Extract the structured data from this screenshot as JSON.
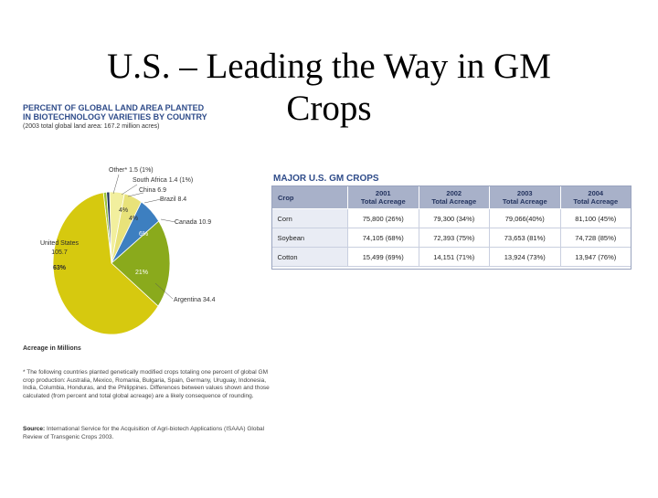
{
  "slide": {
    "title_line1": "U.S. – Leading the Way in GM",
    "title_line2": "Crops"
  },
  "pie": {
    "heading_line1": "PERCENT OF GLOBAL LAND AREA PLANTED",
    "heading_line2": "IN BIOTECHNOLOGY VARIETIES BY COUNTRY",
    "subheading": "(2003 total global land area: 167.2 million acres)",
    "acreage_note": "Acreage in Millions",
    "footnote": "* The following countries planted genetically modified crops totaling one percent of global GM crop production: Australia, Mexico, Romania, Bulgaria, Spain, Germany, Uruguay, Indonesia, India, Columbia, Honduras, and the Philippines. Differences between values shown and those calculated (from percent and total global acreage) are a likely consequence of rounding.",
    "source_label": "Source:",
    "source_text": "International Service for the Acquisition of Agri-biotech Applications (ISAAA) Global Review of Transgenic Crops 2003."
  },
  "chart_data": [
    {
      "type": "pie",
      "title": "PERCENT OF GLOBAL LAND AREA PLANTED IN BIOTECHNOLOGY VARIETIES BY COUNTRY",
      "unit": "Acreage in Millions",
      "slices": [
        {
          "name": "United States",
          "value": 105.7,
          "percent": 63,
          "label_value": "105.7",
          "label_percent": "63%",
          "color": "#d6c90f"
        },
        {
          "name": "Argentina",
          "value": 34.4,
          "percent": 21,
          "label_value": "34.4",
          "label_percent": "21%",
          "color": "#8aaa1c"
        },
        {
          "name": "Canada",
          "value": 10.9,
          "percent": 6,
          "label_value": "10.9",
          "label_percent": "6%",
          "color": "#3d7fc0"
        },
        {
          "name": "Brazil",
          "value": 8.4,
          "percent": 4,
          "label_value": "8.4",
          "label_percent": "4%",
          "color": "#e8e27a"
        },
        {
          "name": "China",
          "value": 6.9,
          "percent": 4,
          "label_value": "6.9",
          "label_percent": "4%",
          "color": "#f2ef9e"
        },
        {
          "name": "South Africa",
          "value": 1.4,
          "percent": 1,
          "label_value": "1.4 (1%)",
          "label_percent": "",
          "color": "#1d2e5a"
        },
        {
          "name": "Other*",
          "value": 1.5,
          "percent": 1,
          "label_value": "1.5 (1%)",
          "label_percent": "",
          "color": "#9cc43a"
        }
      ]
    },
    {
      "type": "table",
      "title": "MAJOR U.S. GM CROPS",
      "columns": [
        "Crop",
        "2001 Total Acreage",
        "2002 Total Acreage",
        "2003 Total Acreage",
        "2004 Total Acreage"
      ],
      "rows": [
        [
          "Corn",
          "75,800 (26%)",
          "79,300 (34%)",
          "79,066(40%)",
          "81,100 (45%)"
        ],
        [
          "Soybean",
          "74,105 (68%)",
          "72,393 (75%)",
          "73,653 (81%)",
          "74,728 (85%)"
        ],
        [
          "Cotton",
          "15,499 (69%)",
          "14,151 (71%)",
          "13,924 (73%)",
          "13,947 (76%)"
        ]
      ]
    }
  ],
  "table_headers": {
    "crop": "Crop",
    "y2001_year": "2001",
    "y2001_label": "Total Acreage",
    "y2002_year": "2002",
    "y2002_label": "Total Acreage",
    "y2003_year": "2003",
    "y2003_label": "Total Acreage",
    "y2004_year": "2004",
    "y2004_label": "Total Acreage"
  }
}
